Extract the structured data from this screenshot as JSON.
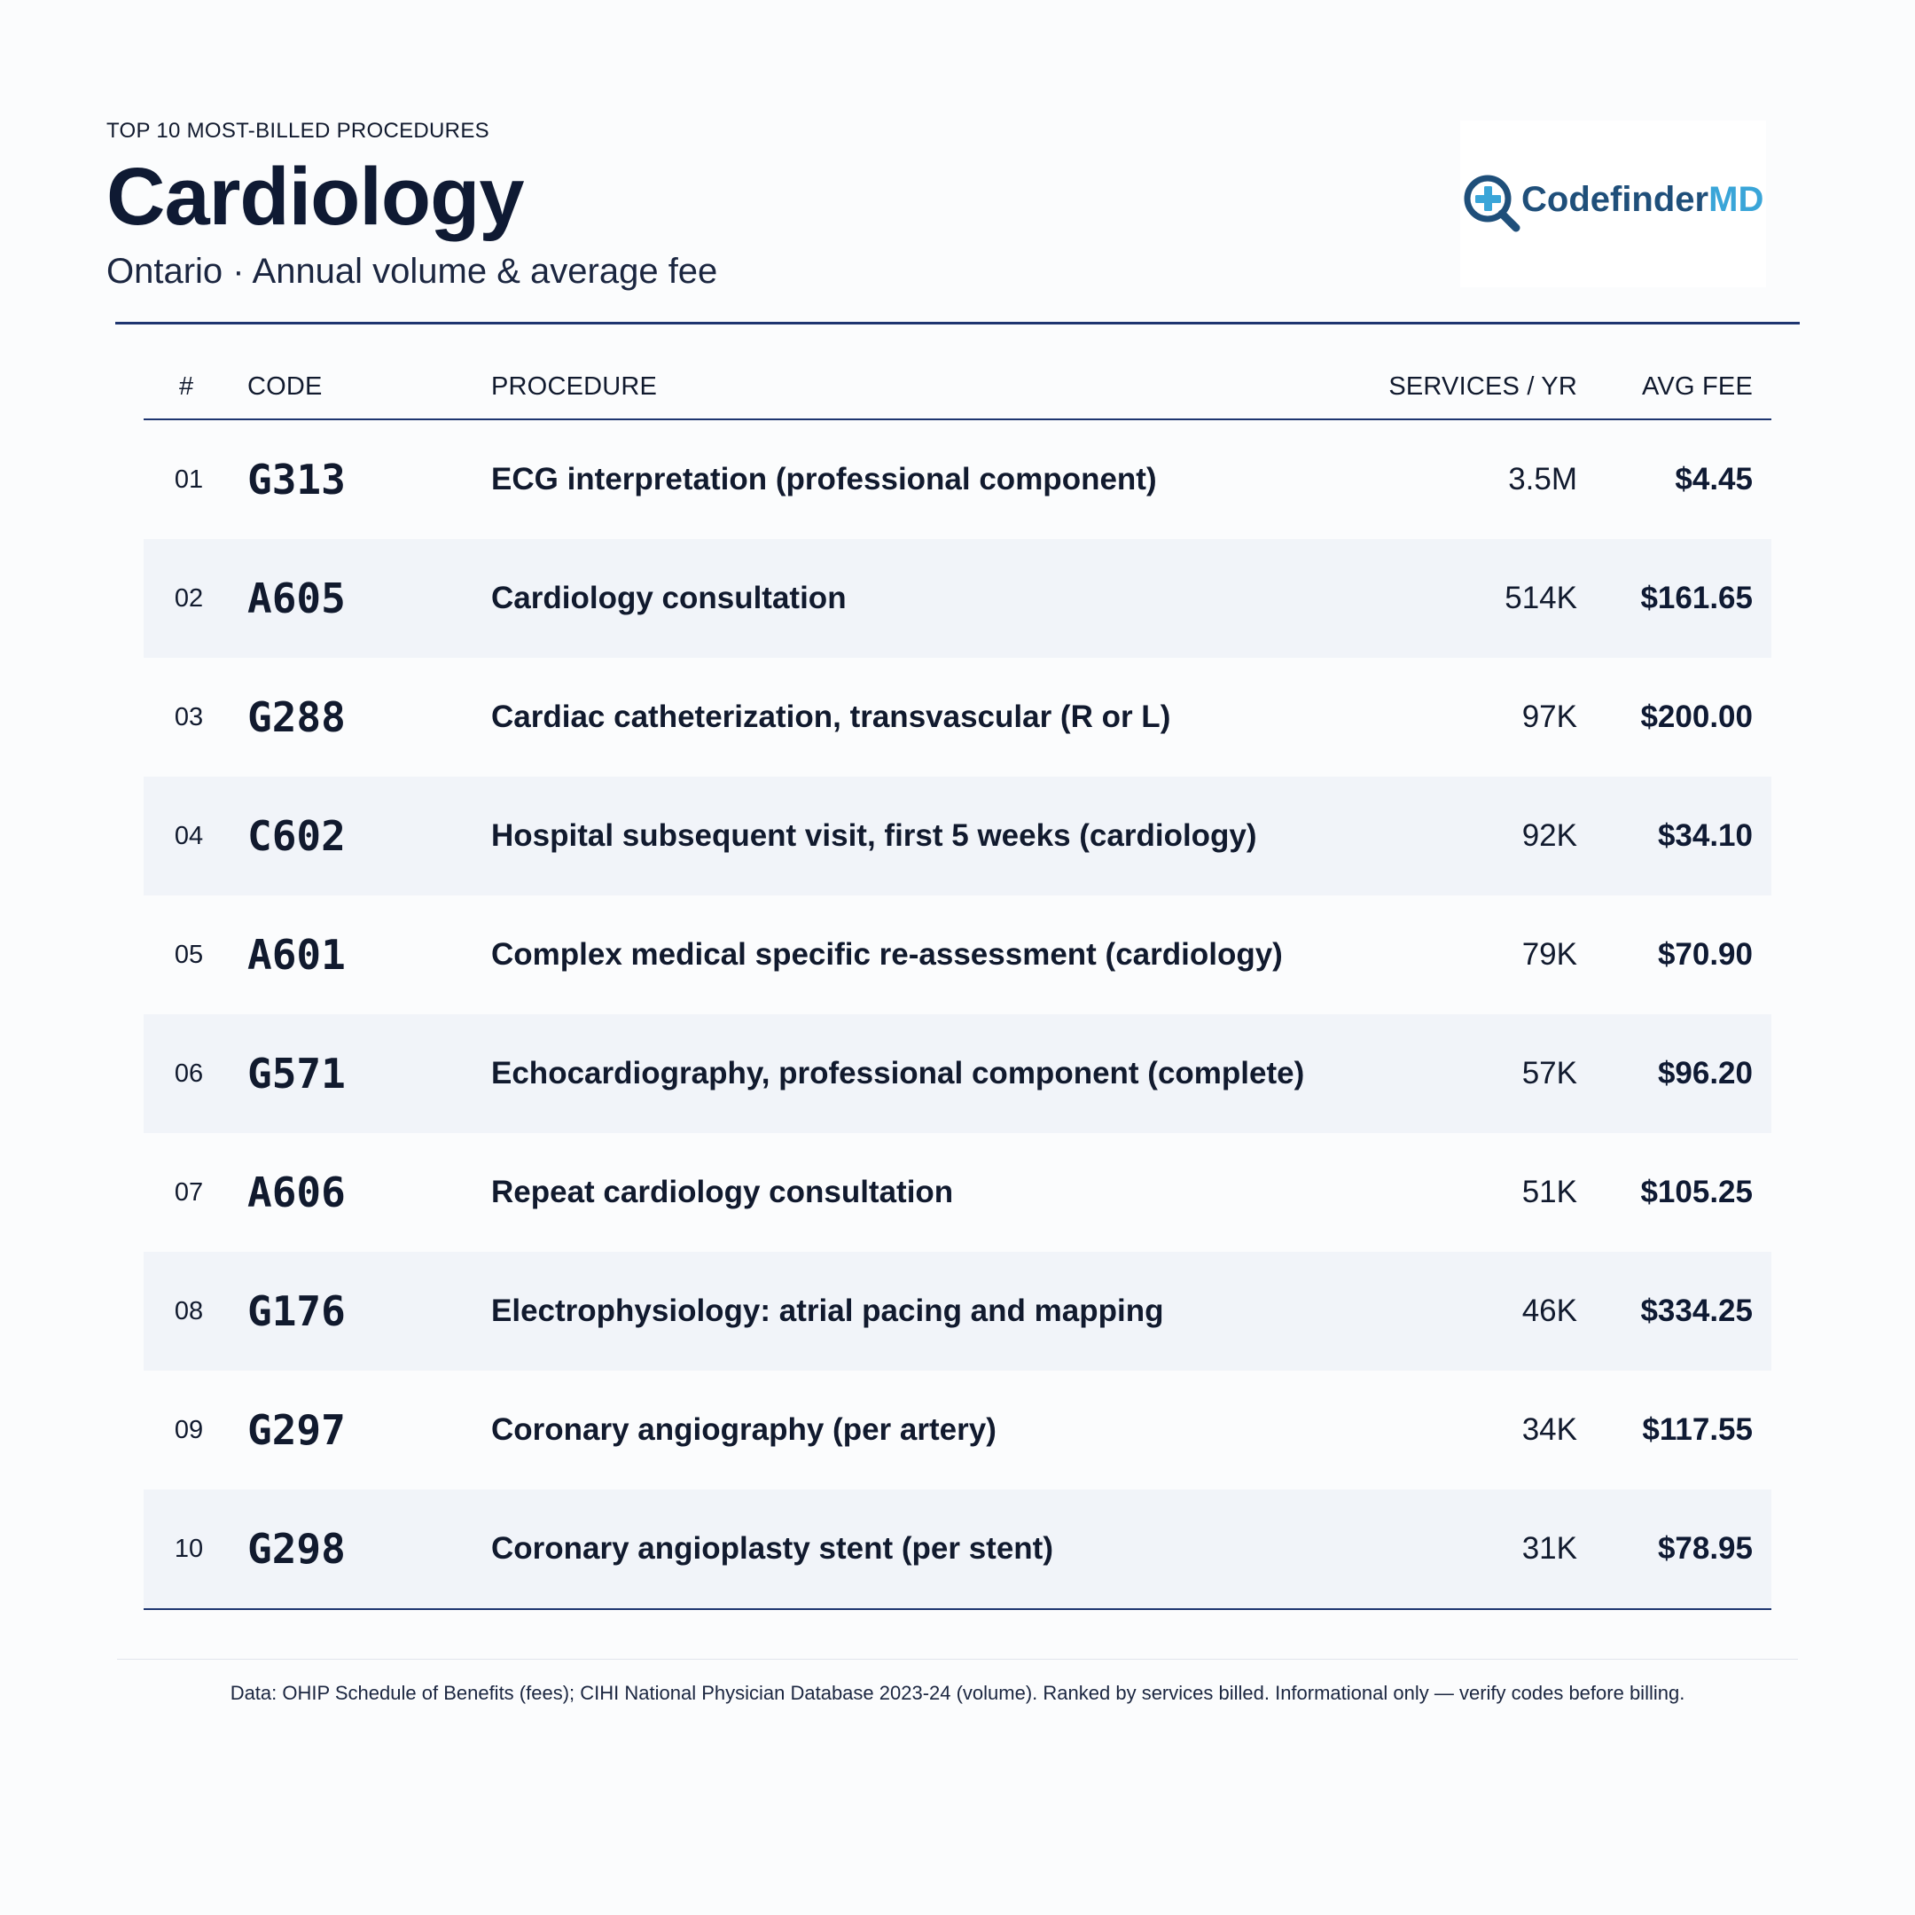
{
  "header": {
    "eyebrow": "TOP 10 MOST-BILLED PROCEDURES",
    "title": "Cardiology",
    "subtitle": "Ontario · Annual volume & average fee"
  },
  "logo": {
    "text_main": "Codefinder",
    "text_accent": "MD",
    "icon": "magnifier-plus-icon",
    "colors": {
      "main": "#1f4f7a",
      "accent": "#3aa5d8"
    }
  },
  "table": {
    "columns": {
      "num": "#",
      "code": "CODE",
      "procedure": "PROCEDURE",
      "services": "SERVICES / YR",
      "fee": "AVG FEE"
    },
    "rows": [
      {
        "num": "01",
        "code": "G313",
        "procedure": "ECG interpretation (professional component)",
        "services": "3.5M",
        "fee": "$4.45"
      },
      {
        "num": "02",
        "code": "A605",
        "procedure": "Cardiology consultation",
        "services": "514K",
        "fee": "$161.65"
      },
      {
        "num": "03",
        "code": "G288",
        "procedure": "Cardiac catheterization, transvascular (R or L)",
        "services": "97K",
        "fee": "$200.00"
      },
      {
        "num": "04",
        "code": "C602",
        "procedure": "Hospital subsequent visit, first 5 weeks (cardiology)",
        "services": "92K",
        "fee": "$34.10"
      },
      {
        "num": "05",
        "code": "A601",
        "procedure": "Complex medical specific re-assessment (cardiology)",
        "services": "79K",
        "fee": "$70.90"
      },
      {
        "num": "06",
        "code": "G571",
        "procedure": "Echocardiography, professional component (complete)",
        "services": "57K",
        "fee": "$96.20"
      },
      {
        "num": "07",
        "code": "A606",
        "procedure": "Repeat cardiology consultation",
        "services": "51K",
        "fee": "$105.25"
      },
      {
        "num": "08",
        "code": "G176",
        "procedure": "Electrophysiology: atrial pacing and mapping",
        "services": "46K",
        "fee": "$334.25"
      },
      {
        "num": "09",
        "code": "G297",
        "procedure": "Coronary angiography (per artery)",
        "services": "34K",
        "fee": "$117.55"
      },
      {
        "num": "10",
        "code": "G298",
        "procedure": "Coronary angioplasty stent (per stent)",
        "services": "31K",
        "fee": "$78.95"
      }
    ]
  },
  "footer": {
    "text": "Data: OHIP Schedule of Benefits (fees); CIHI National Physician Database 2023-24 (volume). Ranked by services billed. Informational only — verify codes before billing."
  },
  "colors": {
    "background": "#fbfcfd",
    "rule": "#1e3570",
    "row_shade": "#f1f4f9",
    "text": "#111a2e"
  }
}
